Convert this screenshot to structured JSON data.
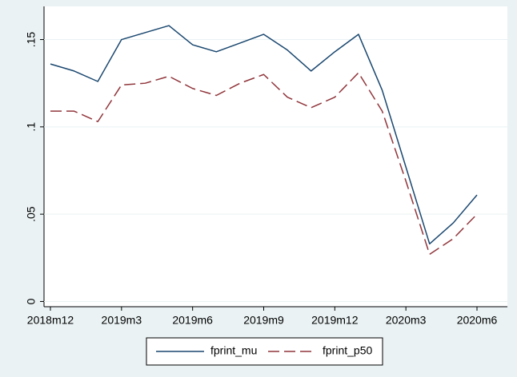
{
  "chart_data": {
    "type": "line",
    "categories": [
      "2018m12",
      null,
      null,
      "2019m3",
      null,
      null,
      "2019m6",
      null,
      null,
      "2019m9",
      null,
      null,
      "2019m12",
      null,
      null,
      "2020m3",
      null,
      null,
      "2020m6"
    ],
    "series": [
      {
        "name": "fprint_mu",
        "color": "#1a476f",
        "dash": false,
        "values": [
          0.136,
          0.132,
          0.126,
          0.15,
          0.154,
          0.158,
          0.147,
          0.143,
          0.148,
          0.153,
          0.144,
          0.132,
          0.143,
          0.153,
          0.121,
          0.077,
          0.033,
          0.045,
          0.061
        ]
      },
      {
        "name": "fprint_p50",
        "color": "#90353b",
        "dash": true,
        "values": [
          0.109,
          0.109,
          0.103,
          0.124,
          0.125,
          0.129,
          0.122,
          0.118,
          0.125,
          0.13,
          0.117,
          0.111,
          0.117,
          0.131,
          0.109,
          0.069,
          0.027,
          0.036,
          0.05
        ]
      }
    ],
    "ylim": [
      -0.003,
      0.169
    ],
    "yticks": [
      {
        "value": 0,
        "label": "0"
      },
      {
        "value": 0.05,
        "label": ".05"
      },
      {
        "value": 0.1,
        "label": ".1"
      },
      {
        "value": 0.15,
        "label": ".15"
      }
    ],
    "grid": true,
    "legend": "bottom"
  }
}
